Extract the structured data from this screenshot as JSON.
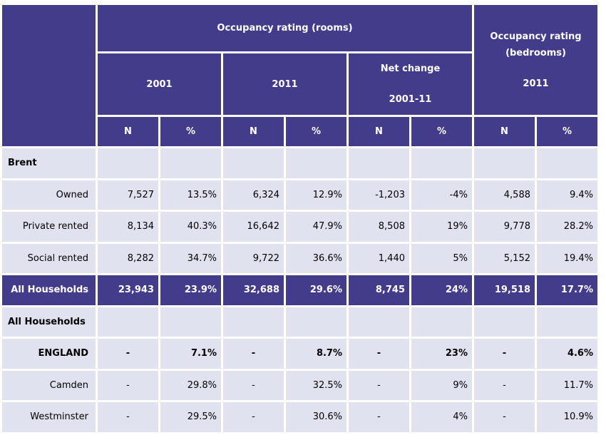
{
  "header": {
    "group_rooms": "Occupancy rating (rooms)",
    "group_bedrooms_line1": "Occupancy rating",
    "group_bedrooms_line2": "(bedrooms)",
    "year_2001": "2001",
    "year_2011": "2011",
    "net_change_line1": "Net change",
    "net_change_line2": "2001-11",
    "year_2011_bedrooms": "2011",
    "col_n": "N",
    "col_pct": "%"
  },
  "sections": {
    "brent": "Brent",
    "all_households": "All Households"
  },
  "rows": [
    {
      "label": "Owned",
      "values": [
        "7,527",
        "13.5%",
        "6,324",
        "12.9%",
        "-1,203",
        "-4%",
        "4,588",
        "9.4%"
      ]
    },
    {
      "label": "Private rented",
      "values": [
        "8,134",
        "40.3%",
        "16,642",
        "47.9%",
        "8,508",
        "19%",
        "9,778",
        "28.2%"
      ]
    },
    {
      "label": "Social rented",
      "values": [
        "8,282",
        "34.7%",
        "9,722",
        "36.6%",
        "1,440",
        "5%",
        "5,152",
        "19.4%"
      ]
    },
    {
      "label": "All Households",
      "values": [
        "23,943",
        "23.9%",
        "32,688",
        "29.6%",
        "8,745",
        "24%",
        "19,518",
        "17.7%"
      ]
    },
    {
      "label": "ENGLAND",
      "values": [
        "-",
        "7.1%",
        "-",
        "8.7%",
        "-",
        "23%",
        "-",
        "4.6%"
      ]
    },
    {
      "label": "Camden",
      "values": [
        "-",
        "29.8%",
        "-",
        "32.5%",
        "-",
        "9%",
        "-",
        "11.7%"
      ]
    },
    {
      "label": "Westminster",
      "values": [
        "-",
        "29.5%",
        "-",
        "30.6%",
        "-",
        "4%",
        "-",
        "10.9%"
      ]
    }
  ]
}
